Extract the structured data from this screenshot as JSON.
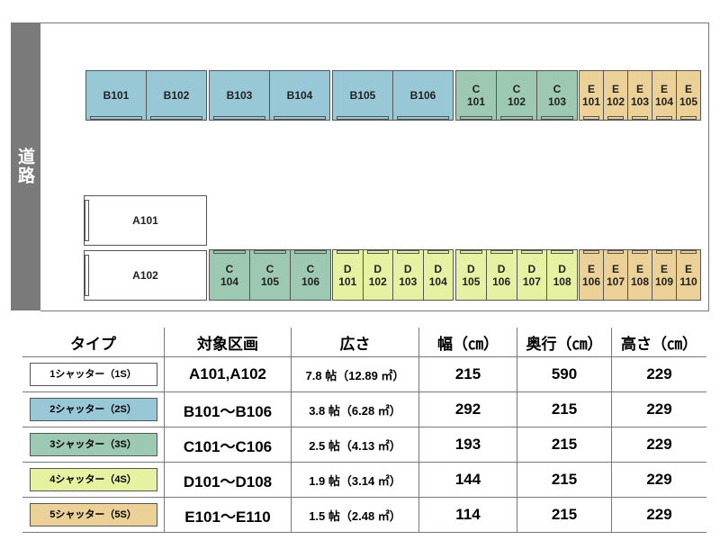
{
  "road_label": "道路",
  "colors": {
    "A": "#ffffff",
    "B": "#98c7d6",
    "C": "#9dc9b3",
    "D": "#e7f1a2",
    "E": "#ebd197"
  },
  "layout": {
    "top_row": [
      {
        "type": "B",
        "units": [
          [
            "B101"
          ],
          [
            "B102"
          ]
        ]
      },
      {
        "type": "B",
        "units": [
          [
            "B103"
          ],
          [
            "B104"
          ]
        ]
      },
      {
        "type": "B",
        "units": [
          [
            "B105"
          ],
          [
            "B106"
          ]
        ]
      },
      {
        "type": "C",
        "units": [
          [
            "C",
            "101"
          ],
          [
            "C",
            "102"
          ],
          [
            "C",
            "103"
          ]
        ]
      },
      {
        "type": "E",
        "units": [
          [
            "E",
            "101"
          ],
          [
            "E",
            "102"
          ],
          [
            "E",
            "103"
          ],
          [
            "E",
            "104"
          ],
          [
            "E",
            "105"
          ]
        ]
      }
    ],
    "a_units": [
      [
        "A101"
      ],
      [
        "A102"
      ]
    ],
    "bottom_row": [
      {
        "type": "C",
        "units": [
          [
            "C",
            "104"
          ],
          [
            "C",
            "105"
          ],
          [
            "C",
            "106"
          ]
        ]
      },
      {
        "type": "D",
        "units": [
          [
            "D",
            "101"
          ],
          [
            "D",
            "102"
          ],
          [
            "D",
            "103"
          ],
          [
            "D",
            "104"
          ]
        ]
      },
      {
        "type": "D",
        "units": [
          [
            "D",
            "105"
          ],
          [
            "D",
            "106"
          ],
          [
            "D",
            "107"
          ],
          [
            "D",
            "108"
          ]
        ]
      },
      {
        "type": "E",
        "units": [
          [
            "E",
            "106"
          ],
          [
            "E",
            "107"
          ],
          [
            "E",
            "108"
          ],
          [
            "E",
            "109"
          ],
          [
            "E",
            "110"
          ]
        ]
      }
    ]
  },
  "table": {
    "headers": [
      "タイプ",
      "対象区画",
      "広さ",
      "幅（㎝）",
      "奥行（㎝）",
      "高さ（㎝）"
    ],
    "rows": [
      {
        "type": "A",
        "badge": "1シャッター（1S）",
        "units": "A101,A102",
        "area": "7.8 帖（12.89 ㎡）",
        "width": "215",
        "depth": "590",
        "height": "229"
      },
      {
        "type": "B",
        "badge": "2シャッター（2S）",
        "units": "B101～B106",
        "area": "3.8 帖（6.28 ㎡）",
        "width": "292",
        "depth": "215",
        "height": "229"
      },
      {
        "type": "C",
        "badge": "3シャッター（3S）",
        "units": "C101～C106",
        "area": "2.5 帖（4.13 ㎡）",
        "width": "193",
        "depth": "215",
        "height": "229"
      },
      {
        "type": "D",
        "badge": "4シャッター（4S）",
        "units": "D101～D108",
        "area": "1.9 帖（3.14 ㎡）",
        "width": "144",
        "depth": "215",
        "height": "229"
      },
      {
        "type": "E",
        "badge": "5シャッター（5S）",
        "units": "E101～E110",
        "area": "1.5 帖（2.48 ㎡）",
        "width": "114",
        "depth": "215",
        "height": "229"
      }
    ]
  }
}
